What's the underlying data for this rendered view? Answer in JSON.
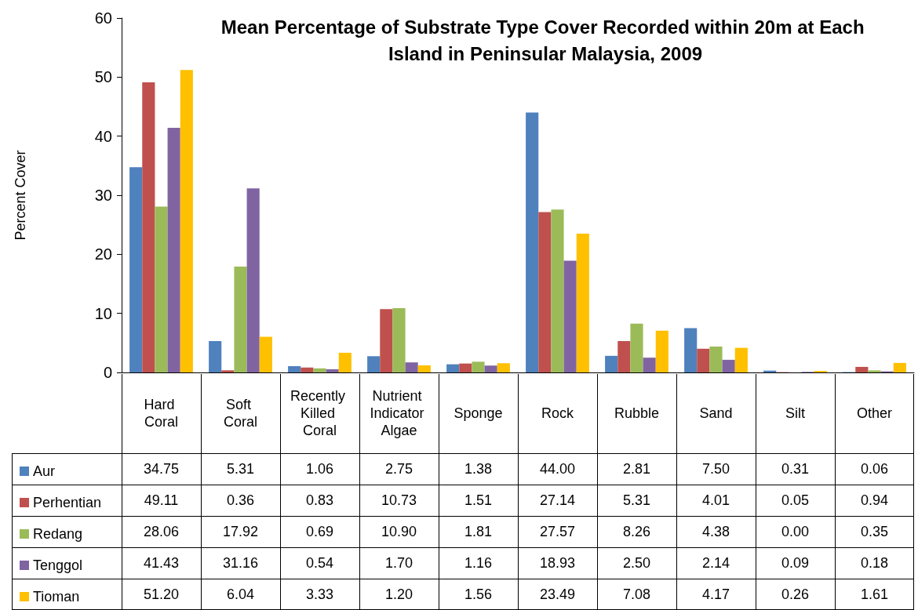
{
  "chart_data": {
    "type": "bar",
    "title": "Mean Percentage of Substrate Type Cover Recorded within 20m at Each Island in Peninsular Malaysia, 2009",
    "ylabel": "Percent Cover",
    "categories": [
      "Hard Coral",
      "Soft Coral",
      "Recently Killed Coral",
      "Nutrient Indicator Algae",
      "Sponge",
      "Rock",
      "Rubble",
      "Sand",
      "Silt",
      "Other"
    ],
    "series": [
      {
        "name": "Aur",
        "color": "#4f81bd",
        "values": [
          34.75,
          5.31,
          1.06,
          2.75,
          1.38,
          44.0,
          2.81,
          7.5,
          0.31,
          0.06
        ],
        "value_labels": [
          "34.75",
          "5.31",
          "1.06",
          "2.75",
          "1.38",
          "44.00",
          "2.81",
          "7.50",
          "0.31",
          "0.06"
        ]
      },
      {
        "name": "Perhentian",
        "color": "#c0504d",
        "values": [
          49.11,
          0.36,
          0.83,
          10.73,
          1.51,
          27.14,
          5.31,
          4.01,
          0.05,
          0.94
        ],
        "value_labels": [
          "49.11",
          "0.36",
          "0.83",
          "10.73",
          "1.51",
          "27.14",
          "5.31",
          "4.01",
          "0.05",
          "0.94"
        ]
      },
      {
        "name": "Redang",
        "color": "#9bbb59",
        "values": [
          28.06,
          17.92,
          0.69,
          10.9,
          1.81,
          27.57,
          8.26,
          4.38,
          0.0,
          0.35
        ],
        "value_labels": [
          "28.06",
          "17.92",
          "0.69",
          "10.90",
          "1.81",
          "27.57",
          "8.26",
          "4.38",
          "0.00",
          "0.35"
        ]
      },
      {
        "name": "Tenggol",
        "color": "#8064a2",
        "values": [
          41.43,
          31.16,
          0.54,
          1.7,
          1.16,
          18.93,
          2.5,
          2.14,
          0.09,
          0.18
        ],
        "value_labels": [
          "41.43",
          "31.16",
          "0.54",
          "1.70",
          "1.16",
          "18.93",
          "2.50",
          "2.14",
          "0.09",
          "0.18"
        ]
      },
      {
        "name": "Tioman",
        "color": "#ffc000",
        "values": [
          51.2,
          6.04,
          3.33,
          1.2,
          1.56,
          23.49,
          7.08,
          4.17,
          0.26,
          1.61
        ],
        "value_labels": [
          "51.20",
          "6.04",
          "3.33",
          "1.20",
          "1.56",
          "23.49",
          "7.08",
          "4.17",
          "0.26",
          "1.61"
        ]
      }
    ],
    "ylim": [
      0,
      60
    ],
    "yticks": [
      0,
      10,
      20,
      30,
      40,
      50,
      60
    ],
    "grid": false,
    "legend": "bottom left"
  }
}
